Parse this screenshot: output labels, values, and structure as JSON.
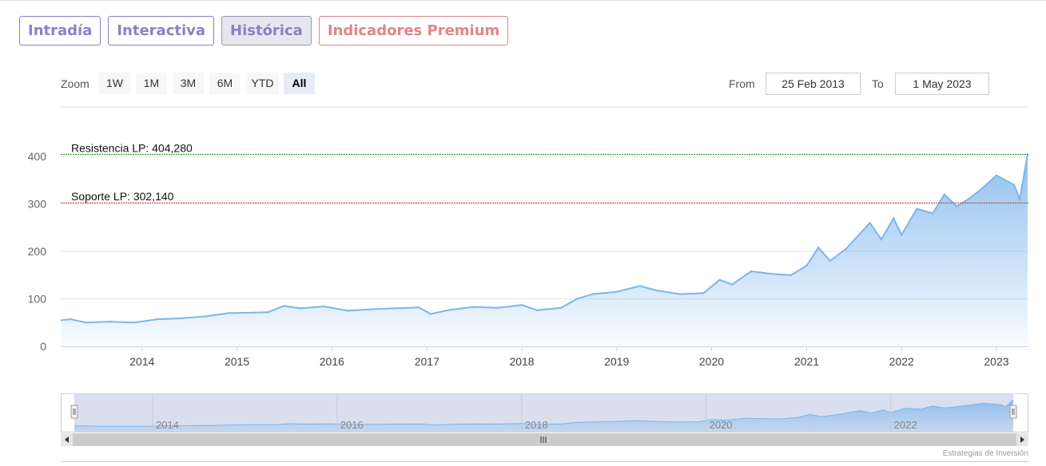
{
  "tabs": [
    {
      "label": "Intradía",
      "active": false
    },
    {
      "label": "Interactiva",
      "active": false
    },
    {
      "label": "Histórica",
      "active": true
    },
    {
      "label": "Indicadores Premium",
      "active": false
    }
  ],
  "range_selector": {
    "zoom_label": "Zoom",
    "buttons": [
      "1W",
      "1M",
      "3M",
      "6M",
      "YTD",
      "All"
    ],
    "selected": "All",
    "from_label": "From",
    "from_value": "25 Feb 2013",
    "to_label": "To",
    "to_value": "1 May 2023"
  },
  "colors": {
    "tab_accent": "#8e7fc8",
    "premium_accent": "#e0848a",
    "series_line": "#7cb5ec",
    "resistance_line": "#2e8b2e",
    "support_line": "#c0392b"
  },
  "chart_data": {
    "type": "area",
    "title": "",
    "xlabel": "",
    "ylabel": "",
    "ylim": [
      0,
      404.28
    ],
    "yticks": [
      0,
      100,
      200,
      300,
      400
    ],
    "xticks": [
      "2014",
      "2015",
      "2016",
      "2017",
      "2018",
      "2019",
      "2020",
      "2021",
      "2022",
      "2023"
    ],
    "grid": true,
    "series": [
      {
        "x": [
          "2013-02-25",
          "2013-04-01",
          "2013-06-01",
          "2013-09-01",
          "2013-12-01",
          "2014-03-01",
          "2014-06-01",
          "2014-09-01",
          "2014-12-01",
          "2015-03-01",
          "2015-05-01",
          "2015-07-01",
          "2015-09-01",
          "2015-12-01",
          "2016-03-01",
          "2016-06-01",
          "2016-09-01",
          "2016-12-01",
          "2017-01-15",
          "2017-04-01",
          "2017-07-01",
          "2017-10-01",
          "2018-01-01",
          "2018-03-01",
          "2018-06-01",
          "2018-08-01",
          "2018-10-01",
          "2019-01-01",
          "2019-04-01",
          "2019-06-01",
          "2019-09-01",
          "2019-12-01",
          "2020-02-01",
          "2020-03-20",
          "2020-06-01",
          "2020-09-01",
          "2020-11-01",
          "2021-01-01",
          "2021-02-15",
          "2021-04-01",
          "2021-06-01",
          "2021-09-01",
          "2021-10-15",
          "2021-12-01",
          "2022-01-01",
          "2022-03-01",
          "2022-05-01",
          "2022-06-15",
          "2022-08-01",
          "2022-09-15",
          "2022-11-01",
          "2023-01-01",
          "2023-03-10",
          "2023-04-01",
          "2023-05-01"
        ],
        "y": [
          55,
          57,
          50,
          52,
          50,
          57,
          59,
          63,
          70,
          71,
          72,
          85,
          80,
          84,
          75,
          78,
          80,
          82,
          68,
          77,
          83,
          81,
          87,
          76,
          81,
          100,
          110,
          115,
          127,
          118,
          110,
          112,
          140,
          130,
          158,
          152,
          150,
          170,
          208,
          180,
          205,
          260,
          225,
          270,
          235,
          290,
          280,
          320,
          295,
          310,
          330,
          360,
          340,
          310,
          404.28
        ]
      }
    ],
    "annotations": [
      {
        "label": "Resistencia LP: 404,280",
        "value": 404.28
      },
      {
        "label": "Soporte LP: 302,140",
        "value": 302.14
      }
    ]
  },
  "navigator": {
    "labels": [
      "2014",
      "2016",
      "2018",
      "2020",
      "2022"
    ]
  },
  "credit": "Estrategias de Inversión"
}
